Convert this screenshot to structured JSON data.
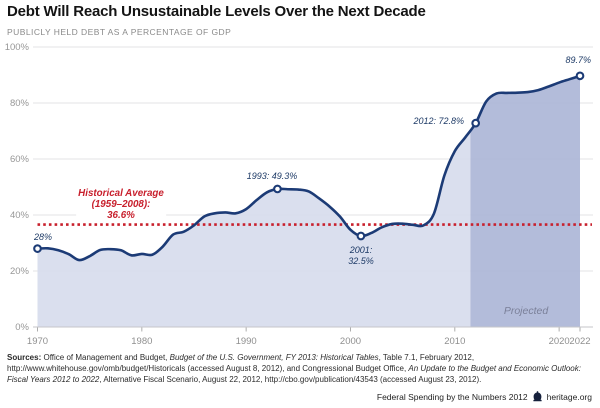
{
  "header": {
    "title": "Debt Will Reach Unsustainable Levels Over the Next Decade",
    "subtitle": "PUBLICLY HELD DEBT AS A PERCENTAGE OF GDP"
  },
  "chart_data": {
    "type": "area",
    "title": "Debt Will Reach Unsustainable Levels Over the Next Decade",
    "ylabel": "Publicly held debt as a percentage of GDP",
    "xlabel": "",
    "ylim": [
      0,
      100
    ],
    "grid": "horizontal",
    "y_ticks": [
      {
        "v": 0,
        "label": "0%"
      },
      {
        "v": 20,
        "label": "20%"
      },
      {
        "v": 40,
        "label": "40%"
      },
      {
        "v": 60,
        "label": "60%"
      },
      {
        "v": 80,
        "label": "80%"
      },
      {
        "v": 100,
        "label": "100%"
      }
    ],
    "x_ticks": [
      {
        "year": 1970,
        "label": "1970"
      },
      {
        "year": 1980,
        "label": "1980"
      },
      {
        "year": 1990,
        "label": "1990"
      },
      {
        "year": 2000,
        "label": "2000"
      },
      {
        "year": 2010,
        "label": "2010"
      },
      {
        "year": 2020,
        "label": "2020"
      },
      {
        "year": 2022,
        "label": "2022"
      }
    ],
    "x": [
      1970,
      1971,
      1972,
      1973,
      1974,
      1975,
      1976,
      1977,
      1978,
      1979,
      1980,
      1981,
      1982,
      1983,
      1984,
      1985,
      1986,
      1987,
      1988,
      1989,
      1990,
      1991,
      1992,
      1993,
      1994,
      1995,
      1996,
      1997,
      1998,
      1999,
      2000,
      2001,
      2002,
      2003,
      2004,
      2005,
      2006,
      2007,
      2008,
      2009,
      2010,
      2011,
      2012,
      2013,
      2014,
      2015,
      2016,
      2017,
      2018,
      2019,
      2020,
      2021,
      2022
    ],
    "values": [
      28.0,
      28.1,
      27.4,
      26.0,
      23.9,
      25.3,
      27.5,
      27.8,
      27.4,
      25.6,
      26.1,
      25.8,
      28.7,
      33.0,
      34.0,
      36.3,
      39.5,
      40.6,
      40.9,
      40.6,
      42.1,
      45.3,
      48.1,
      49.3,
      49.2,
      49.1,
      48.4,
      45.9,
      43.0,
      39.4,
      34.7,
      32.5,
      33.6,
      35.6,
      36.8,
      36.9,
      36.5,
      36.3,
      40.5,
      54.1,
      62.8,
      67.7,
      72.8,
      80.5,
      83.4,
      83.6,
      83.7,
      83.9,
      84.6,
      85.9,
      87.3,
      88.5,
      89.7
    ],
    "projection_start_year": 2012,
    "projected_label": "Projected",
    "historical_average": {
      "value": 36.6,
      "label": "Historical Average\n(1959–2008):\n36.6%"
    },
    "annotations": [
      {
        "text": "28%",
        "year": 1970,
        "value": 28.0
      },
      {
        "text": "1993: 49.3%",
        "year": 1993,
        "value": 49.3
      },
      {
        "text": "2001:\n32.5%",
        "year": 2001,
        "value": 32.5
      },
      {
        "text": "2012: 72.8%",
        "year": 2012,
        "value": 72.8
      },
      {
        "text": "89.7%",
        "year": 2022,
        "value": 89.7
      }
    ],
    "colors": {
      "line": "#1c3b76",
      "area_historical": "#d9deee",
      "area_projected": "#b3bcdb",
      "average_line": "#c8202d",
      "grid": "#e3e3e6",
      "baseline": "#c6c6c9",
      "axis_text": "#979797"
    }
  },
  "sources": {
    "lines": [
      [
        {
          "t": "Sources: ",
          "b": true
        },
        {
          "t": "Office of Management and Budget, "
        },
        {
          "t": "Budget of the U.S. Government, FY 2013: Historical Tables",
          "i": true
        },
        {
          "t": ", Table 7.1, February 2012,"
        }
      ],
      [
        {
          "t": "http://www.whitehouse.gov/omb/budget/Historicals (accessed August 8, 2012), and Congressional Budget Office, "
        },
        {
          "t": "An Update to the Budget and Economic Outlook:",
          "i": true
        }
      ],
      [
        {
          "t": "Fiscal Years 2012 to 2022",
          "i": true
        },
        {
          "t": ", Alternative Fiscal Scenario, August 22, 2012, http://cbo.gov/publication/43543 (accessed August 23, 2012)."
        }
      ]
    ]
  },
  "footer": {
    "publication": "Federal Spending by the Numbers 2012",
    "site": "heritage.org"
  }
}
